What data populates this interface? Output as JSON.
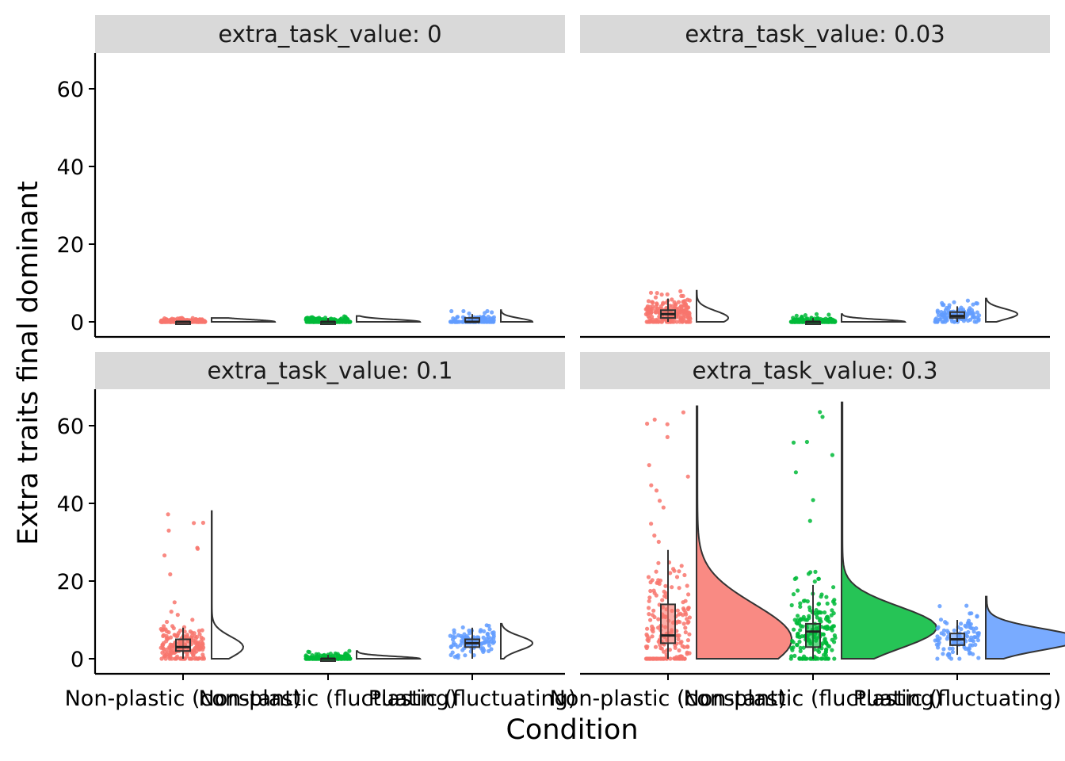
{
  "chart_data": {
    "type": "raincloud",
    "xlabel": "Condition",
    "ylabel": "Extra traits final dominant",
    "categories": [
      "Non-plastic (constant)",
      "Non-plastic (fluctuating)",
      "Plastic (fluctuating)"
    ],
    "yticks": [
      0,
      20,
      40,
      60
    ],
    "ylim": [
      -3.5,
      69
    ],
    "colors": {
      "Non-plastic (constant)": "#F8766D",
      "Non-plastic (fluctuating)": "#00BA38",
      "Plastic (fluctuating)": "#619CFF"
    },
    "panels": [
      {
        "label": "extra_task_value: 0",
        "groups": [
          {
            "category": "Non-plastic (constant)",
            "box": {
              "q1": 0,
              "median": 0,
              "q3": 0,
              "whisker_low": 0,
              "whisker_high": 0
            },
            "y_max": 1,
            "n_points": 200,
            "density_peak": 0
          },
          {
            "category": "Non-plastic (fluctuating)",
            "box": {
              "q1": 0,
              "median": 0,
              "q3": 0,
              "whisker_low": 0,
              "whisker_high": 1
            },
            "y_max": 1.5,
            "n_points": 200,
            "density_peak": 0
          },
          {
            "category": "Plastic (fluctuating)",
            "box": {
              "q1": 0,
              "median": 0,
              "q3": 1,
              "whisker_low": 0,
              "whisker_high": 2
            },
            "y_max": 3,
            "n_points": 100,
            "density_peak": 0
          }
        ]
      },
      {
        "label": "extra_task_value: 0.03",
        "groups": [
          {
            "category": "Non-plastic (constant)",
            "box": {
              "q1": 1,
              "median": 2,
              "q3": 3,
              "whisker_low": 0,
              "whisker_high": 6
            },
            "y_max": 8,
            "n_points": 200,
            "density_peak": 1
          },
          {
            "category": "Non-plastic (fluctuating)",
            "box": {
              "q1": 0,
              "median": 0,
              "q3": 0,
              "whisker_low": 0,
              "whisker_high": 1
            },
            "y_max": 2,
            "n_points": 200,
            "density_peak": 0
          },
          {
            "category": "Plastic (fluctuating)",
            "box": {
              "q1": 1,
              "median": 1.5,
              "q3": 2.5,
              "whisker_low": 0,
              "whisker_high": 4
            },
            "y_max": 6,
            "n_points": 100,
            "density_peak": 2
          }
        ]
      },
      {
        "label": "extra_task_value: 0.1",
        "groups": [
          {
            "category": "Non-plastic (constant)",
            "box": {
              "q1": 2,
              "median": 3,
              "q3": 5,
              "whisker_low": 0,
              "whisker_high": 8
            },
            "y_max": 38,
            "n_points": 200,
            "density_peak": 3
          },
          {
            "category": "Non-plastic (fluctuating)",
            "box": {
              "q1": 0,
              "median": 0,
              "q3": 0,
              "whisker_low": 0,
              "whisker_high": 1
            },
            "y_max": 2,
            "n_points": 200,
            "density_peak": 0
          },
          {
            "category": "Plastic (fluctuating)",
            "box": {
              "q1": 3,
              "median": 4,
              "q3": 5,
              "whisker_low": 0,
              "whisker_high": 8
            },
            "y_max": 9,
            "n_points": 100,
            "density_peak": 4
          }
        ]
      },
      {
        "label": "extra_task_value: 0.3",
        "groups": [
          {
            "category": "Non-plastic (constant)",
            "box": {
              "q1": 4,
              "median": 6,
              "q3": 14,
              "whisker_low": 0,
              "whisker_high": 28
            },
            "y_max": 65,
            "n_points": 200,
            "density_peak": 5
          },
          {
            "category": "Non-plastic (fluctuating)",
            "box": {
              "q1": 3,
              "median": 7,
              "q3": 9,
              "whisker_low": 0,
              "whisker_high": 19
            },
            "y_max": 66,
            "n_points": 200,
            "density_peak": 8
          },
          {
            "category": "Plastic (fluctuating)",
            "box": {
              "q1": 3.5,
              "median": 5,
              "q3": 6.5,
              "whisker_low": 1,
              "whisker_high": 10
            },
            "y_max": 16,
            "n_points": 100,
            "density_peak": 5
          }
        ]
      }
    ]
  }
}
